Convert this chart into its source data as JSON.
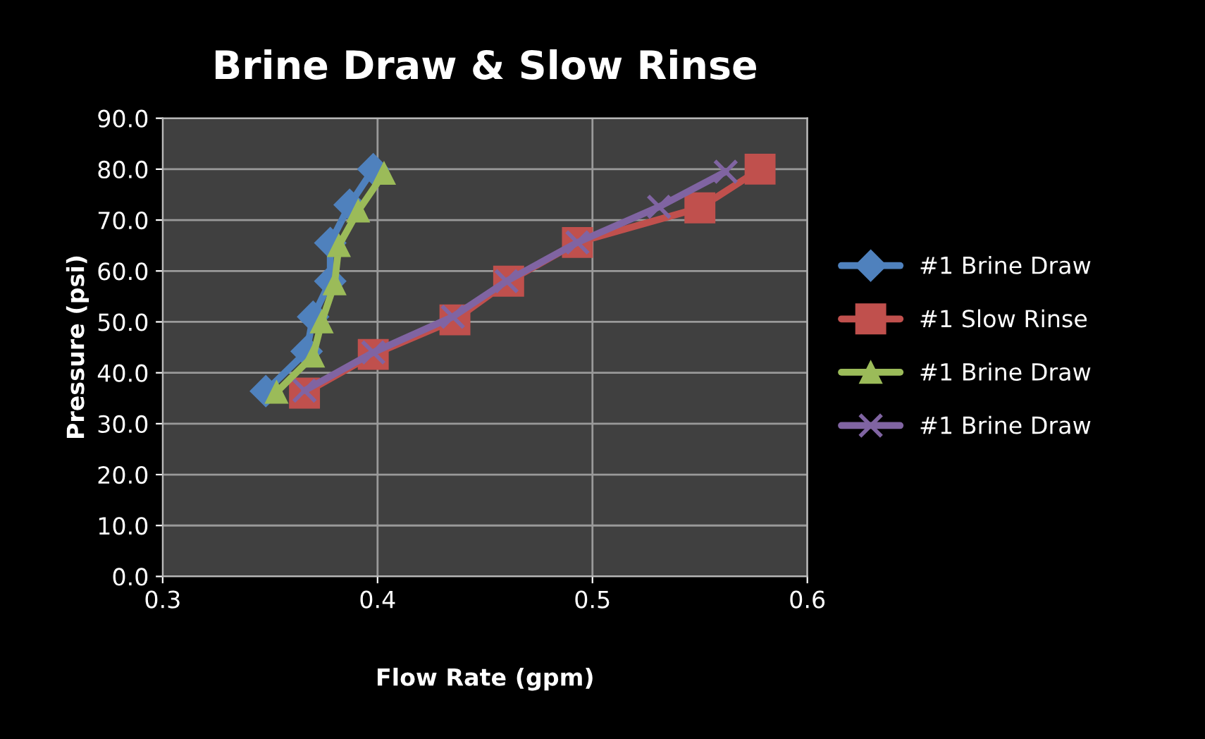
{
  "chart_data": {
    "type": "line",
    "title": "Brine Draw & Slow Rinse",
    "xlabel": "Flow Rate (gpm)",
    "ylabel": "Pressure (psi)",
    "xlim": [
      0.3,
      0.6
    ],
    "xticks": [
      0.3,
      0.4,
      0.5,
      0.6
    ],
    "ylim": [
      0,
      90
    ],
    "yticks": [
      {
        "value": 0,
        "label": "0.0"
      },
      {
        "value": 10,
        "label": "10.0"
      },
      {
        "value": 20,
        "label": "20.0"
      },
      {
        "value": 30,
        "label": "30.0"
      },
      {
        "value": 40,
        "label": "40.0"
      },
      {
        "value": 50,
        "label": "50.0"
      },
      {
        "value": 60,
        "label": "60.0"
      },
      {
        "value": 70,
        "label": "70.0"
      },
      {
        "value": 80,
        "label": "80.0"
      },
      {
        "value": 90,
        "label": "90.0"
      }
    ],
    "grid": true,
    "legend": "right",
    "series": [
      {
        "name": "#1 Brine Draw",
        "color": "#4f81bd",
        "marker": "diamond",
        "x": [
          0.348,
          0.367,
          0.37,
          0.378,
          0.378,
          0.387,
          0.398
        ],
        "values": [
          36.4,
          44.2,
          51,
          58,
          65.5,
          73,
          80
        ]
      },
      {
        "name": "#1 Slow Rinse",
        "color": "#c0504d",
        "marker": "square",
        "x": [
          0.366,
          0.398,
          0.436,
          0.461,
          0.493,
          0.55,
          0.578
        ],
        "values": [
          36,
          43.6,
          50.4,
          58,
          65.6,
          72.4,
          80
        ]
      },
      {
        "name": "#1 Brine Draw",
        "color": "#9bbb59",
        "marker": "triangle",
        "x": [
          0.353,
          0.37,
          0.374,
          0.38,
          0.382,
          0.391,
          0.403
        ],
        "values": [
          36.2,
          43.3,
          50,
          57.5,
          65,
          71.8,
          79.2
        ]
      },
      {
        "name": "#1 Brine Draw",
        "color": "#8064a2",
        "marker": "cross",
        "x": [
          0.366,
          0.398,
          0.435,
          0.46,
          0.493,
          0.531,
          0.562
        ],
        "values": [
          36.5,
          44,
          51,
          58,
          65.6,
          72.6,
          79.5
        ]
      }
    ]
  }
}
